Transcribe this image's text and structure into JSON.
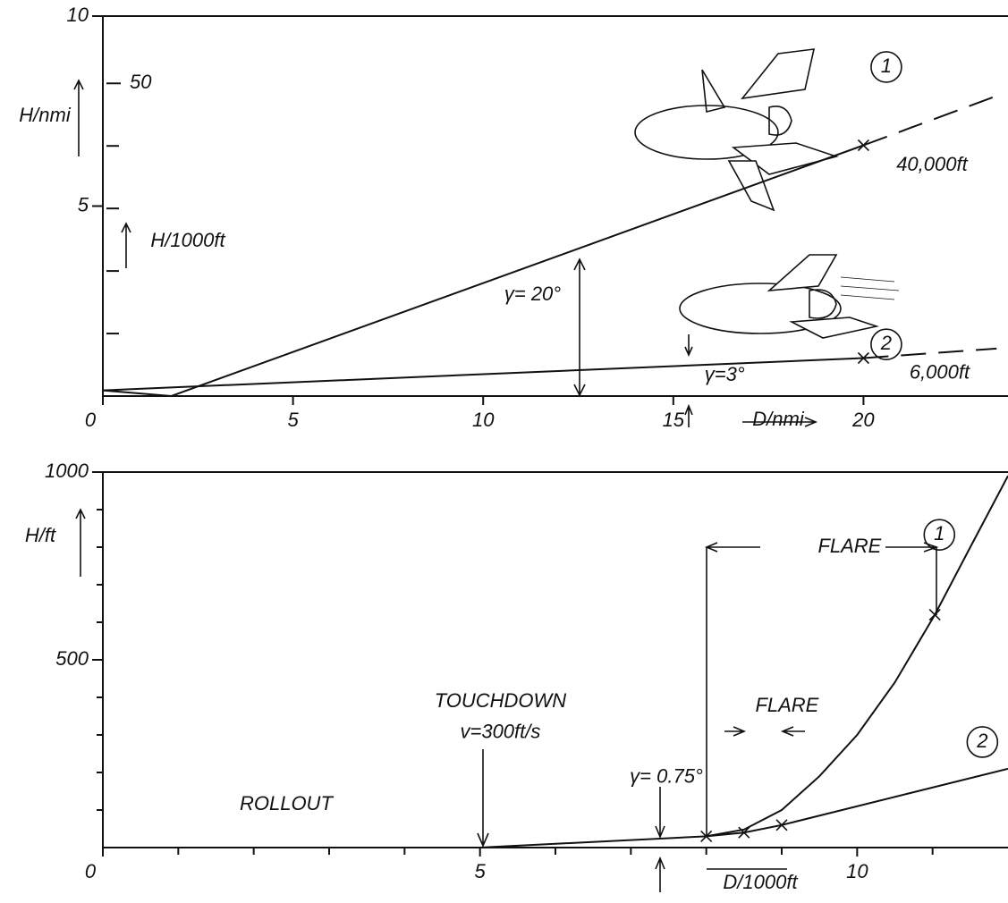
{
  "chart_data": [
    {
      "type": "line",
      "xlabel": "D/nmi",
      "ylabel": "H/nmi",
      "y2label": "H/1000ft",
      "xlim": [
        0,
        23.8
      ],
      "ylim": [
        0,
        10
      ],
      "y2lim": [
        0,
        60.76
      ],
      "xticks": [
        0,
        5,
        10,
        15,
        20
      ],
      "yticks": [
        5,
        10
      ],
      "y2ticks": [
        50
      ],
      "y2minor": [
        10,
        20,
        30,
        40
      ],
      "series": [
        {
          "name": "1",
          "color": "#111111",
          "x": [
            0,
            1.8,
            20
          ],
          "values": [
            0.15,
            0,
            6.6
          ]
        },
        {
          "color": "#111111",
          "dash": true,
          "x": [
            20,
            23.5
          ],
          "values": [
            6.6,
            7.9
          ]
        },
        {
          "name": "2",
          "color": "#111111",
          "x": [
            0,
            20
          ],
          "values": [
            0.15,
            1.0
          ]
        },
        {
          "color": "#111111",
          "dash": true,
          "x": [
            20,
            23.5
          ],
          "values": [
            1.0,
            1.25
          ]
        }
      ],
      "markers": {
        "x": [
          20,
          20
        ],
        "values": [
          6.6,
          1.0
        ]
      },
      "annotations": [
        {
          "text": "1",
          "circled": true,
          "x": 20.6,
          "y": 8.66
        },
        {
          "text": "2",
          "circled": true,
          "x": 20.6,
          "y": 1.36
        },
        {
          "text": "40,000ft",
          "x": 21.8,
          "y": 6.07
        },
        {
          "text": "6,000ft",
          "x": 22,
          "y": 0.59
        },
        {
          "text": "γ= 20°",
          "x": 11.3,
          "y": 2.66
        },
        {
          "text": "γ=3°",
          "x": 16.35,
          "y": 0.54
        }
      ]
    },
    {
      "type": "line",
      "xlabel": "D/1000ft",
      "ylabel": "H/ft",
      "xlim": [
        0,
        12
      ],
      "ylim": [
        0,
        1000
      ],
      "xticks": [
        0,
        5,
        10
      ],
      "yticks": [
        500,
        1000
      ],
      "xminor": [
        1,
        2,
        3,
        4,
        6,
        7,
        8,
        9,
        11
      ],
      "yminor": [
        100,
        200,
        300,
        400,
        600,
        700,
        800,
        900
      ],
      "series": [
        {
          "name": "1",
          "color": "#111111",
          "x": [
            8,
            8.5,
            9,
            9.5,
            10,
            10.5,
            11.03,
            11.5,
            12
          ],
          "values": [
            30,
            48,
            100,
            190,
            300,
            440,
            620,
            800,
            990
          ]
        },
        {
          "name": "2",
          "color": "#111111",
          "x": [
            0,
            5,
            8,
            8.5,
            9,
            12
          ],
          "values": [
            0,
            0,
            30,
            40,
            60,
            210
          ]
        }
      ],
      "markers": {
        "x": [
          8,
          8.5,
          9,
          11.03
        ],
        "values": [
          30,
          40,
          60,
          620
        ]
      },
      "annotations": [
        {
          "text": "1",
          "circled": true,
          "x": 11.09,
          "y": 833
        },
        {
          "text": "2",
          "circled": true,
          "x": 11.66,
          "y": 281
        },
        {
          "text": "FLARE",
          "x": 9.9,
          "y": 800
        },
        {
          "text": "FLARE",
          "x": 9.07,
          "y": 376
        },
        {
          "text": "TOUCHDOWN",
          "x": 5.27,
          "y": 388
        },
        {
          "text": "v=300ft/s",
          "x": 5.27,
          "y": 305
        },
        {
          "text": "ROLLOUT",
          "x": 2.43,
          "y": 114
        },
        {
          "text": "γ= 0.75°",
          "x": 7.47,
          "y": 186
        }
      ]
    }
  ]
}
